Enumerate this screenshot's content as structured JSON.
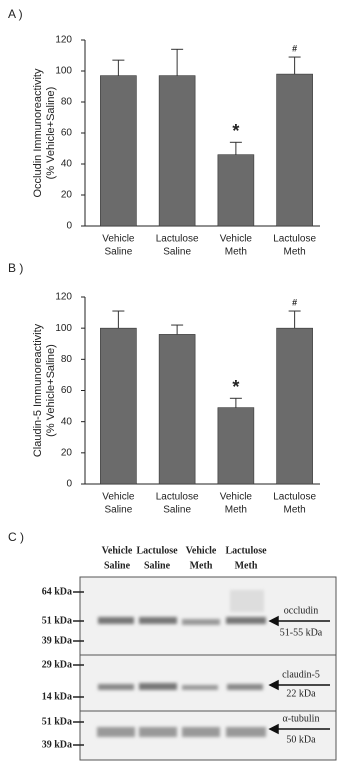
{
  "chart_data": [
    {
      "type": "bar",
      "panel_label": "A )",
      "y_label": [
        "Occludin Immunoreactivity",
        "(% Vehicle+Saline)"
      ],
      "categories": [
        [
          "Vehicle",
          "Saline"
        ],
        [
          "Lactulose",
          "Saline"
        ],
        [
          "Vehicle",
          "Meth"
        ],
        [
          "Lactulose",
          "Meth"
        ]
      ],
      "values": [
        97,
        97,
        46,
        98
      ],
      "errors": [
        10,
        17,
        8,
        11
      ],
      "markers": [
        null,
        null,
        "*",
        "#"
      ],
      "color": "#6b6b6b",
      "ylim": [
        0,
        120
      ],
      "yticks": [
        0,
        20,
        40,
        60,
        80,
        100,
        120
      ]
    },
    {
      "type": "bar",
      "panel_label": "B )",
      "y_label": [
        "Claudin-5 Immunoreactivity",
        "(% Vehicle+Saline)"
      ],
      "categories": [
        [
          "Vehicle",
          "Saline"
        ],
        [
          "Lactulose",
          "Saline"
        ],
        [
          "Vehicle",
          "Meth"
        ],
        [
          "Lactulose",
          "Meth"
        ]
      ],
      "values": [
        100,
        96,
        49,
        100
      ],
      "errors": [
        11,
        6,
        6,
        11
      ],
      "markers": [
        null,
        null,
        "*",
        "#"
      ],
      "color": "#6b6b6b",
      "ylim": [
        0,
        120
      ],
      "yticks": [
        0,
        20,
        40,
        60,
        80,
        100,
        120
      ]
    }
  ],
  "blot": {
    "panel_label": "C )",
    "lanes": [
      [
        "Vehicle",
        "Saline"
      ],
      [
        "Lactulose",
        "Saline"
      ],
      [
        "Vehicle",
        "Meth"
      ],
      [
        "Lactulose",
        "Meth"
      ]
    ],
    "markers": [
      [
        "64 kDa",
        "51 kDa",
        "39 kDa"
      ],
      [
        "29 kDa",
        "14 kDa"
      ],
      [
        "51 kDa",
        "39 kDa"
      ]
    ],
    "proteins": [
      [
        "occludin",
        "51-55 kDa"
      ],
      [
        "claudin-5",
        "22 kDa"
      ],
      [
        "α-tubulin",
        "50 kDa"
      ]
    ]
  }
}
